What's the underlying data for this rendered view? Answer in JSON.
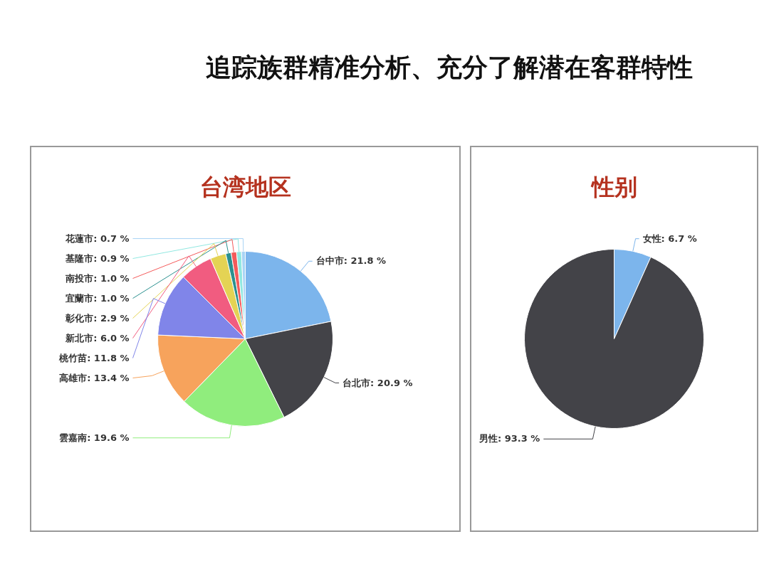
{
  "chart_data": [
    {
      "type": "other",
      "title": "追踪族群精准分析、充分了解潜在客群特性"
    },
    {
      "type": "pie",
      "title": "台湾地区",
      "categories": [
        "台中市",
        "台北市",
        "雲嘉南",
        "高雄市",
        "桃竹苗",
        "新北市",
        "彰化市",
        "宜蘭市",
        "南投市",
        "基隆市",
        "花蓮市"
      ],
      "values": [
        21.8,
        20.9,
        19.6,
        13.4,
        11.8,
        6.0,
        2.9,
        1.0,
        1.0,
        0.9,
        0.7
      ],
      "colors": [
        "#7cb5ec",
        "#434348",
        "#90ed7d",
        "#f7a35c",
        "#8085e9",
        "#f15c80",
        "#e4d354",
        "#2b908f",
        "#f45b5b",
        "#91e8e1",
        "#a9d4f5"
      ],
      "value_labels": [
        ": 21.8 %",
        ": 20.9 %",
        ": 19.6 %",
        ": 13.4 %",
        ": 11.8 %",
        ": 6.0 %",
        ": 2.9 %",
        ": 1.0 %",
        ": 1.0 %",
        ": 0.9 %",
        ": 0.7 %"
      ]
    },
    {
      "type": "pie",
      "title": "性别",
      "categories": [
        "女性",
        "男性"
      ],
      "values": [
        6.7,
        93.3
      ],
      "colors": [
        "#7cb5ec",
        "#434348"
      ],
      "value_labels": [
        ": 6.7 %",
        ": 93.3 %"
      ]
    }
  ]
}
